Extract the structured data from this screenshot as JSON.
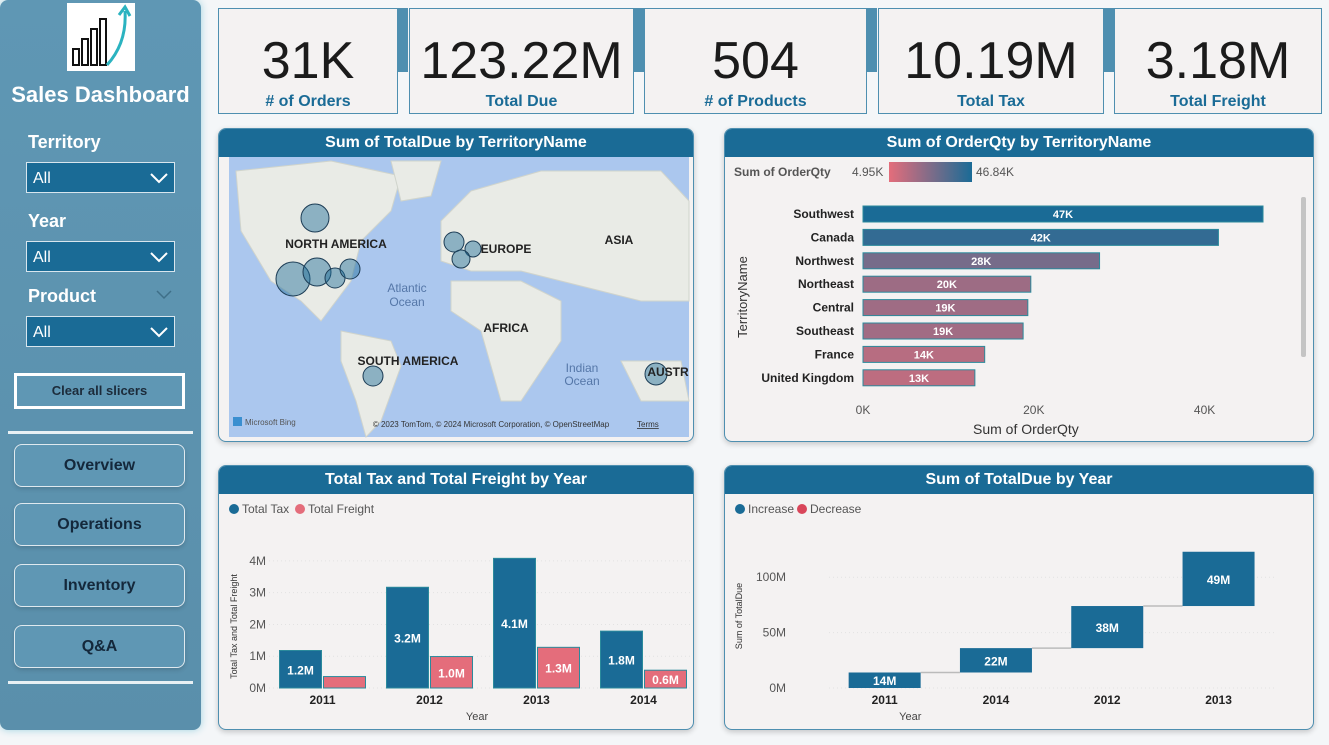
{
  "sidebar": {
    "title": "Sales Dashboard",
    "filters": [
      {
        "label": "Territory",
        "value": "All"
      },
      {
        "label": "Year",
        "value": "All"
      },
      {
        "label": "Product",
        "value": "All"
      }
    ],
    "clear_button": "Clear all slicers",
    "nav": [
      "Overview",
      "Operations",
      "Inventory",
      "Q&A"
    ]
  },
  "kpis": [
    {
      "value": "31K",
      "label": "# of Orders"
    },
    {
      "value": "123.22M",
      "label": "Total Due"
    },
    {
      "value": "504",
      "label": "# of Products"
    },
    {
      "value": "10.19M",
      "label": "Total Tax"
    },
    {
      "value": "3.18M",
      "label": "Total Freight"
    }
  ],
  "chart_data": [
    {
      "type": "map",
      "title": "Sum of TotalDue by TerritoryName",
      "labels": [
        "NORTH AMERICA",
        "EUROPE",
        "ASIA",
        "AFRICA",
        "SOUTH AMERICA",
        "AUSTR",
        "Atlantic",
        "Ocean",
        "Indian",
        "Ocean"
      ],
      "brand": "Microsoft Bing",
      "attribution": "© 2023 TomTom, © 2024 Microsoft Corporation, © OpenStreetMap",
      "terms": "Terms"
    },
    {
      "type": "hbar",
      "title": "Sum of OrderQty by TerritoryName",
      "legend_title": "Sum of OrderQty",
      "color_scale": {
        "min": {
          "value": 4950,
          "label": "4.95K"
        },
        "max": {
          "value": 46840,
          "label": "46.84K"
        },
        "colors": [
          "#e46d7b",
          "#1a6b96"
        ]
      },
      "categories": [
        "Southwest",
        "Canada",
        "Northwest",
        "Northeast",
        "Central",
        "Southeast",
        "France",
        "United Kingdom"
      ],
      "values": [
        46840,
        41620,
        27700,
        19650,
        19300,
        18750,
        14250,
        13100
      ],
      "value_labels": [
        "47K",
        "42K",
        "28K",
        "20K",
        "19K",
        "19K",
        "14K",
        "13K"
      ],
      "xlim": [
        0,
        50000
      ],
      "xticks": [
        {
          "value": 0,
          "label": "0K"
        },
        {
          "value": 20000,
          "label": "20K"
        },
        {
          "value": 40000,
          "label": "40K"
        }
      ],
      "xlabel": "Sum of OrderQty",
      "ylabel": "TerritoryName"
    },
    {
      "type": "grouped_bar",
      "title": "Total Tax and Total Freight by Year",
      "categories": [
        "2011",
        "2012",
        "2013",
        "2014"
      ],
      "series": [
        {
          "name": "Total Tax",
          "color": "#1a6b96",
          "values": [
            1180000,
            3170000,
            4080000,
            1790000
          ],
          "value_labels": [
            "1.2M",
            "3.2M",
            "4.1M",
            "1.8M"
          ]
        },
        {
          "name": "Total Freight",
          "color": "#e46d7b",
          "values": [
            360000,
            990000,
            1280000,
            560000
          ],
          "value_labels": [
            null,
            "1.0M",
            "1.3M",
            "0.6M"
          ]
        }
      ],
      "ylim": [
        0,
        4500000
      ],
      "yticks": [
        {
          "value": 0,
          "label": "0M"
        },
        {
          "value": 1000000,
          "label": "1M"
        },
        {
          "value": 2000000,
          "label": "2M"
        },
        {
          "value": 3000000,
          "label": "3M"
        },
        {
          "value": 4000000,
          "label": "4M"
        }
      ],
      "xlabel": "Year",
      "ylabel": "Total Tax and Total Freight"
    },
    {
      "type": "waterfall",
      "title": "Sum of TotalDue by Year",
      "legend": [
        {
          "name": "Increase",
          "color": "#1a6b96"
        },
        {
          "name": "Decrease",
          "color": "#d9465a"
        }
      ],
      "categories": [
        "2011",
        "2014",
        "2012",
        "2013"
      ],
      "values": [
        14000000,
        22000000,
        38000000,
        49000000
      ],
      "value_labels": [
        "14M",
        "22M",
        "38M",
        "49M"
      ],
      "ylim": [
        0,
        130000000
      ],
      "yticks": [
        {
          "value": 0,
          "label": "0M"
        },
        {
          "value": 50000000,
          "label": "50M"
        },
        {
          "value": 100000000,
          "label": "100M"
        }
      ],
      "xlabel": "Year",
      "ylabel": "Sum of TotalDue"
    }
  ]
}
